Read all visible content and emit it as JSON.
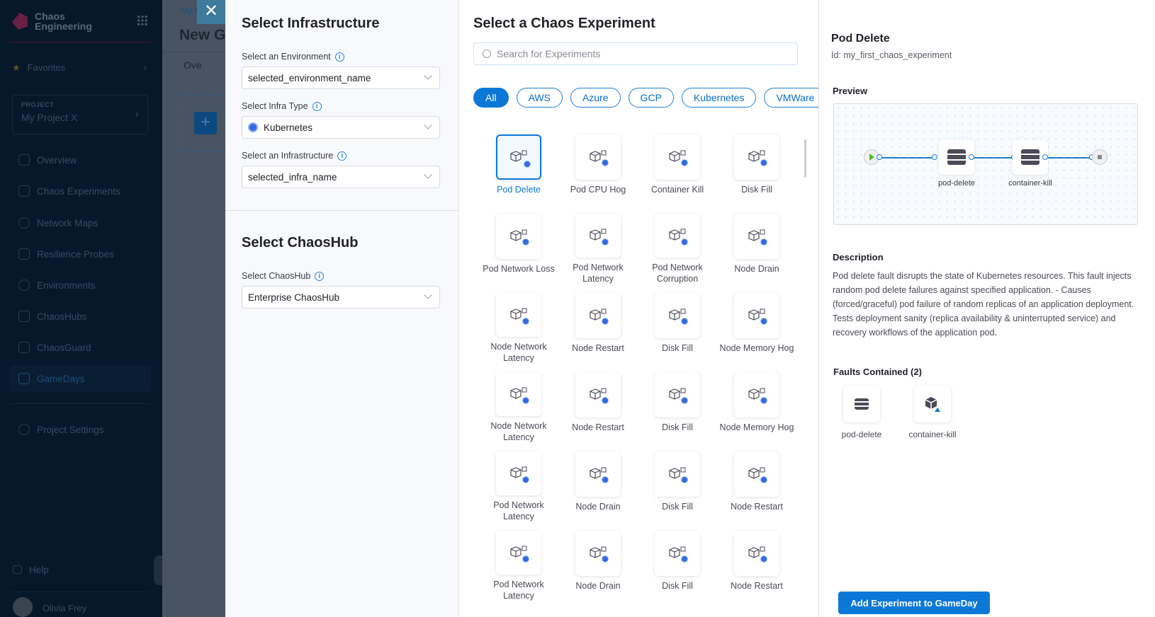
{
  "sidebar": {
    "brand_line1": "Chaos",
    "brand_line2": "Engineering",
    "favorites": "Favorites",
    "project_label": "PROJECT",
    "project_name": "My Project X",
    "items": [
      {
        "label": "Overview",
        "icon": "home-icon"
      },
      {
        "label": "Chaos Experiments",
        "icon": "flask-icon"
      },
      {
        "label": "Network Maps",
        "icon": "network-icon"
      },
      {
        "label": "Resilience Probes",
        "icon": "probe-icon"
      },
      {
        "label": "Environments",
        "icon": "environments-icon"
      },
      {
        "label": "ChaosHubs",
        "icon": "hub-icon"
      },
      {
        "label": "ChaosGuard",
        "icon": "lock-icon"
      },
      {
        "label": "GameDays",
        "icon": "gamepad-icon",
        "active": true
      }
    ],
    "project_settings": "Project Settings",
    "help": "Help",
    "user_name": "Olivia Frey"
  },
  "background_page": {
    "breadcrumb": "My Proj",
    "title": "New G",
    "tab": "Ove"
  },
  "infra": {
    "title": "Select Infrastructure",
    "env_label": "Select an Environment",
    "env_value": "selected_environment_name",
    "type_label": "Select Infra Type",
    "type_value": "Kubernetes",
    "infra_label": "Select an Infrastructure",
    "infra_value": "selected_infra_name"
  },
  "hub": {
    "title": "Select ChaosHub",
    "label": "Select ChaosHub",
    "value": "Enterprise ChaosHub"
  },
  "experiments": {
    "title": "Select a Chaos Experiment",
    "search_placeholder": "Search for Experiments",
    "filters": [
      "All",
      "AWS",
      "Azure",
      "GCP",
      "Kubernetes",
      "VMWare"
    ],
    "active_filter": "All",
    "items": [
      "Pod Delete",
      "Pod CPU Hog",
      "Container Kill",
      "Disk Fill",
      "Pod Network Loss",
      "Pod Network Latency",
      "Pod Network Corruption",
      "Node Drain",
      "Node Network Latency",
      "Node Restart",
      "Disk Fill",
      "Node Memory Hog",
      "Node Network Latency",
      "Node Restart",
      "Disk Fill",
      "Node Memory Hog",
      "Pod Network Latency",
      "Node Drain",
      "Disk Fill",
      "Node Restart",
      "Pod Network Latency",
      "Node Drain",
      "Disk Fill",
      "Node Restart"
    ],
    "selected": "Pod Delete"
  },
  "details": {
    "title": "Pod Delete",
    "id": "Id: my_first_chaos_experiment",
    "preview_label": "Preview",
    "preview_nodes": [
      "pod-delete",
      "container-kill"
    ],
    "description_label": "Description",
    "description": "Pod delete fault disrupts the state of Kubernetes resources. This fault injects random pod delete failures against specified application. - Causes (forced/graceful) pod failure of random replicas of an application deployment. Tests deployment sanity (replica availability & uninterrupted service) and recovery workflows of the application pod.",
    "faults_label": "Faults Contained (2)",
    "faults": [
      "pod-delete",
      "container-kill"
    ],
    "add_button": "Add Experiment to GameDay"
  },
  "colors": {
    "accent": "#0b78d7",
    "sidebar_bg": "#07182b",
    "k8s_badge": "#326ce5"
  }
}
